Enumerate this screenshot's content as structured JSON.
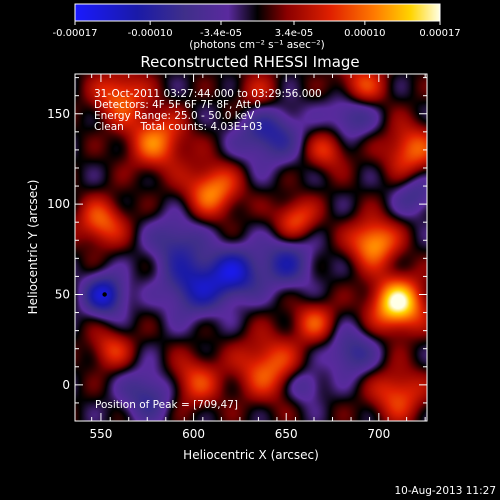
{
  "chart_data": {
    "type": "heatmap",
    "title": "Reconstructed RHESSI Image",
    "xlabel": "Heliocentric X (arcsec)",
    "ylabel": "Heliocentric Y (arcsec)",
    "xlim": [
      536,
      726
    ],
    "ylim": [
      -20,
      172
    ],
    "x_ticks": [
      550,
      600,
      650,
      700
    ],
    "y_ticks": [
      0,
      50,
      100,
      150
    ],
    "colorbar": {
      "range": [
        -0.00017,
        0.00017
      ],
      "tick_values": [
        -0.00017,
        -0.0001,
        -3.4e-05,
        3.4e-05,
        0.0001,
        0.00017
      ],
      "tick_labels": [
        "-0.00017",
        "-0.00010",
        "-3.4e-05",
        "3.4e-05",
        "0.00010",
        "0.00017"
      ],
      "units_label": "(photons cm⁻² s⁻¹ asec⁻²)",
      "colors": [
        "#1a1aff",
        "#1a1aa8",
        "#3f2f8a",
        "#5a2a9e",
        "#000000",
        "#8a0000",
        "#e02000",
        "#ff7a00",
        "#ffd400",
        "#ffffe6"
      ]
    },
    "annotations": [
      "31-Oct-2011 03:27:44.000 to 03:29:56.000",
      "Detectors: 4F 5F 6F 7F 8F, Att 0",
      "Energy Range: 25.0 - 50.0 keV",
      "Clean     Total counts: 4.03E+03"
    ],
    "peak_label": "Position of Peak = [709,47]",
    "peak_position": [
      709,
      47
    ],
    "min_marker": [
      552,
      50
    ],
    "sources": [
      {
        "x": 710,
        "y": 45,
        "sigma": 10,
        "amp": 1.0
      },
      {
        "x": 697,
        "y": 79,
        "sigma": 9,
        "amp": 0.75
      },
      {
        "x": 717,
        "y": 130,
        "sigma": 10,
        "amp": 0.55
      },
      {
        "x": 610,
        "y": 108,
        "sigma": 10,
        "amp": 0.65
      },
      {
        "x": 580,
        "y": 135,
        "sigma": 11,
        "amp": 0.6
      },
      {
        "x": 655,
        "y": 92,
        "sigma": 8,
        "amp": 0.5
      },
      {
        "x": 550,
        "y": 90,
        "sigma": 9,
        "amp": 0.55
      },
      {
        "x": 560,
        "y": 160,
        "sigma": 10,
        "amp": 0.55
      },
      {
        "x": 690,
        "y": 165,
        "sigma": 9,
        "amp": 0.5
      },
      {
        "x": 640,
        "y": 10,
        "sigma": 12,
        "amp": 0.55
      },
      {
        "x": 600,
        "y": 2,
        "sigma": 10,
        "amp": 0.45
      },
      {
        "x": 710,
        "y": -5,
        "sigma": 10,
        "amp": 0.5
      },
      {
        "x": 665,
        "y": 35,
        "sigma": 8,
        "amp": 0.45
      },
      {
        "x": 555,
        "y": 20,
        "sigma": 8,
        "amp": 0.4
      },
      {
        "x": 672,
        "y": 130,
        "sigma": 8,
        "amp": 0.4
      },
      {
        "x": 635,
        "y": 160,
        "sigma": 9,
        "amp": 0.35
      },
      {
        "x": 600,
        "y": 55,
        "sigma": 12,
        "amp": -0.65
      },
      {
        "x": 622,
        "y": 62,
        "sigma": 10,
        "amp": -0.7
      },
      {
        "x": 552,
        "y": 50,
        "sigma": 8,
        "amp": -0.8
      },
      {
        "x": 650,
        "y": 68,
        "sigma": 10,
        "amp": -0.55
      },
      {
        "x": 640,
        "y": 140,
        "sigma": 12,
        "amp": -0.6
      },
      {
        "x": 685,
        "y": 150,
        "sigma": 9,
        "amp": -0.5
      },
      {
        "x": 685,
        "y": 18,
        "sigma": 9,
        "amp": -0.5
      },
      {
        "x": 575,
        "y": -5,
        "sigma": 10,
        "amp": -0.5
      },
      {
        "x": 660,
        "y": 0,
        "sigma": 7,
        "amp": -0.4
      },
      {
        "x": 720,
        "y": 105,
        "sigma": 8,
        "amp": -0.4
      },
      {
        "x": 590,
        "y": 80,
        "sigma": 10,
        "amp": -0.45
      }
    ]
  },
  "footer": {
    "timestamp": "10-Aug-2013 11:27"
  }
}
